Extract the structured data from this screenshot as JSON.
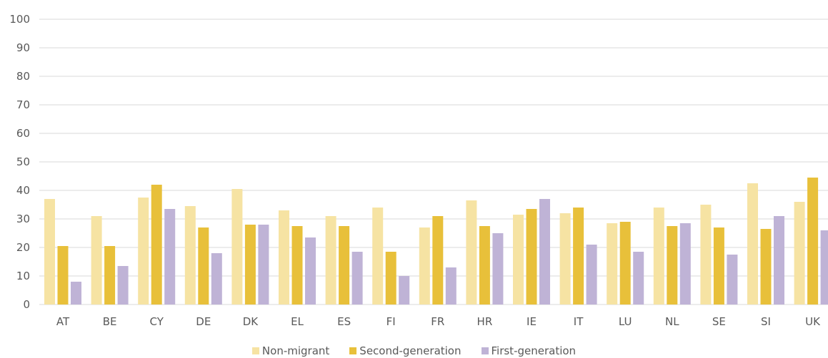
{
  "chart_data": {
    "type": "bar",
    "categories": [
      "AT",
      "BE",
      "CY",
      "DE",
      "DK",
      "EL",
      "ES",
      "FI",
      "FR",
      "HR",
      "IE",
      "IT",
      "LU",
      "NL",
      "SE",
      "SI",
      "UK"
    ],
    "series": [
      {
        "name": "Non-migrant",
        "color": "#f6e3a3",
        "values": [
          37,
          31,
          37.5,
          34.5,
          40.5,
          33,
          31,
          34,
          27,
          36.5,
          31.5,
          32,
          28.5,
          34,
          35,
          42.5,
          36
        ]
      },
      {
        "name": "Second-generation",
        "color": "#e8c03a",
        "values": [
          20.5,
          20.5,
          42,
          27,
          28,
          27.5,
          27.5,
          18.5,
          31,
          27.5,
          33.5,
          34,
          29,
          27.5,
          27,
          26.5,
          44.5
        ]
      },
      {
        "name": "First-generation",
        "color": "#bfb3d6",
        "values": [
          8,
          13.5,
          33.5,
          18,
          28,
          23.5,
          18.5,
          10,
          13,
          25,
          37,
          21,
          18.5,
          28.5,
          17.5,
          31,
          26
        ]
      }
    ],
    "yticks": [
      0,
      10,
      20,
      30,
      40,
      50,
      60,
      70,
      80,
      90,
      100
    ],
    "ylim": [
      0,
      100
    ],
    "grid": true,
    "legend_position": "bottom"
  }
}
